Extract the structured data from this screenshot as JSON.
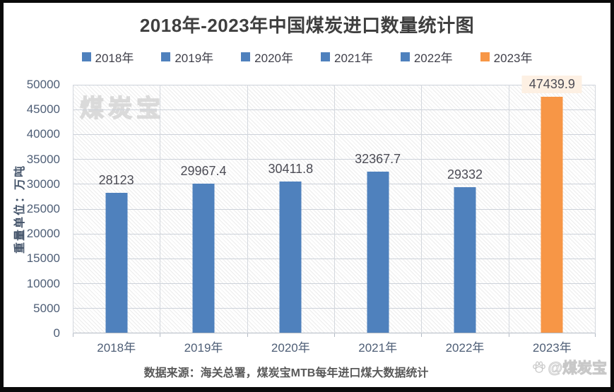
{
  "page": {
    "title": "2018年-2023年中国煤炭进口数量统计图",
    "footer": "数据来源：海关总署，煤炭宝MTB每年进口煤大数据统计",
    "plot_watermark": "煤炭宝",
    "corner_watermark": "@煤炭宝"
  },
  "chart_data": {
    "type": "bar",
    "title": "2018年-2023年中国煤炭进口数量统计图",
    "categories": [
      "2018年",
      "2019年",
      "2020年",
      "2021年",
      "2022年",
      "2023年"
    ],
    "values": [
      28123,
      29967.4,
      30411.8,
      32367.7,
      29332,
      47439.9
    ],
    "value_labels": [
      "28123",
      "29967.4",
      "30411.8",
      "32367.7",
      "29332",
      "47439.9"
    ],
    "bar_colors": [
      "#4F81BD",
      "#4F81BD",
      "#4F81BD",
      "#4F81BD",
      "#4F81BD",
      "#F79646"
    ],
    "legend": [
      {
        "label": "2018年",
        "color": "#4F81BD"
      },
      {
        "label": "2019年",
        "color": "#4F81BD"
      },
      {
        "label": "2020年",
        "color": "#4F81BD"
      },
      {
        "label": "2021年",
        "color": "#4F81BD"
      },
      {
        "label": "2022年",
        "color": "#4F81BD"
      },
      {
        "label": "2023年",
        "color": "#F79646"
      }
    ],
    "legend_position": "top",
    "ylabel": "重量单位：万吨",
    "xlabel": "",
    "ylim": [
      0,
      50000
    ],
    "ytick_step": 5000,
    "grid": true,
    "plot_background": "diagonal-hatch",
    "highlight": {
      "index": 5,
      "label_bg": "#FDF0E3"
    },
    "source_note": "数据来源：海关总署，煤炭宝MTB每年进口煤大数据统计"
  },
  "colors": {
    "bar_blue": "#4F81BD",
    "bar_orange": "#F79646",
    "title_text": "#3F3F3F",
    "axis_text": "#4E5E76",
    "data_label_text": "#4C4C55",
    "gridline": "#CDD2DA",
    "axis_line": "#B3BAC4",
    "footer_text": "#595959",
    "frame": "#000000",
    "highlight_label_bg": "#FDF0E3"
  }
}
